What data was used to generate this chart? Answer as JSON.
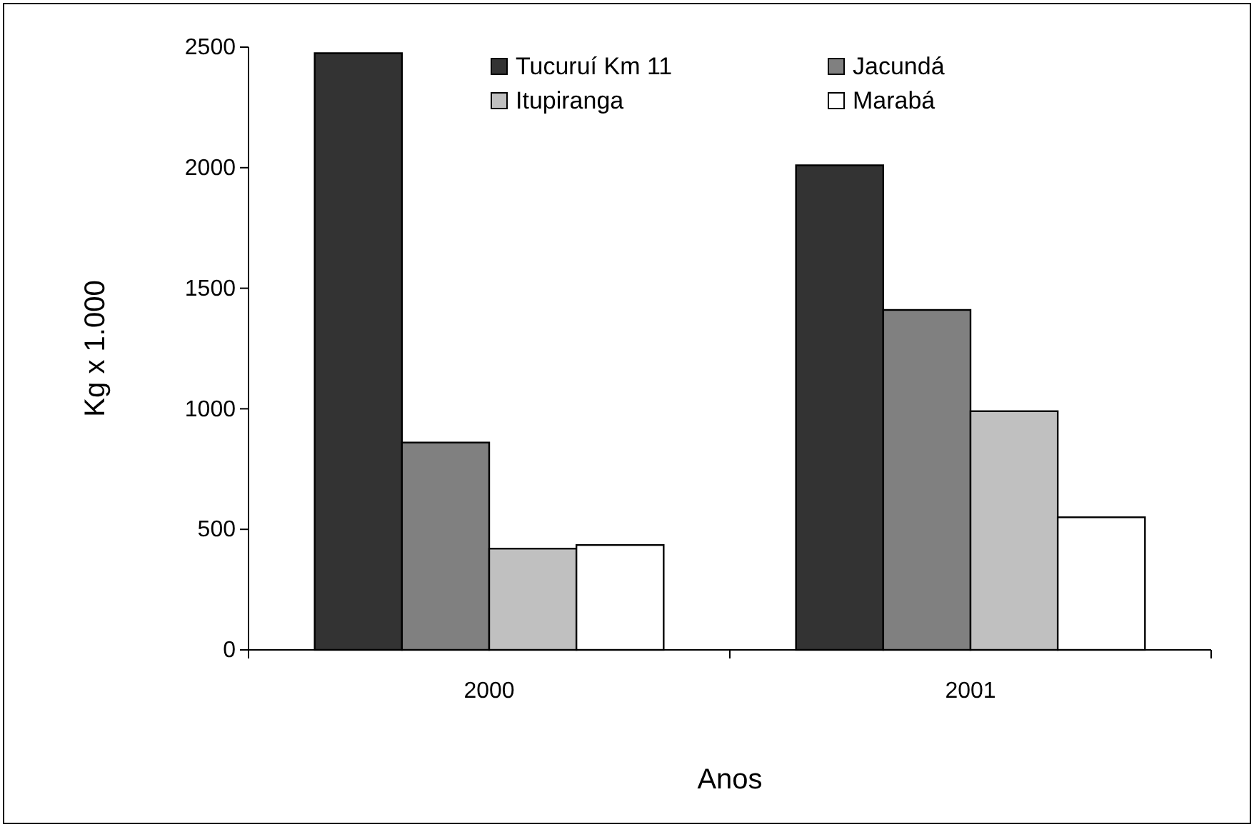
{
  "chart_data": {
    "type": "bar",
    "xlabel": "Anos",
    "ylabel": "Kg x 1.000",
    "categories": [
      "2000",
      "2001"
    ],
    "series": [
      {
        "name": "Tucuruí Km 11",
        "color": "#333333",
        "values": [
          2475,
          2010
        ]
      },
      {
        "name": "Jacundá",
        "color": "#808080",
        "values": [
          860,
          1410
        ]
      },
      {
        "name": "Itupiranga",
        "color": "#c0c0c0",
        "values": [
          420,
          990
        ]
      },
      {
        "name": "Marabá",
        "color": "#ffffff",
        "values": [
          435,
          550
        ]
      }
    ],
    "ylim": [
      0,
      2500
    ],
    "yticks": [
      0,
      500,
      1000,
      1500,
      2000,
      2500
    ],
    "grid": false,
    "legend": "top"
  }
}
